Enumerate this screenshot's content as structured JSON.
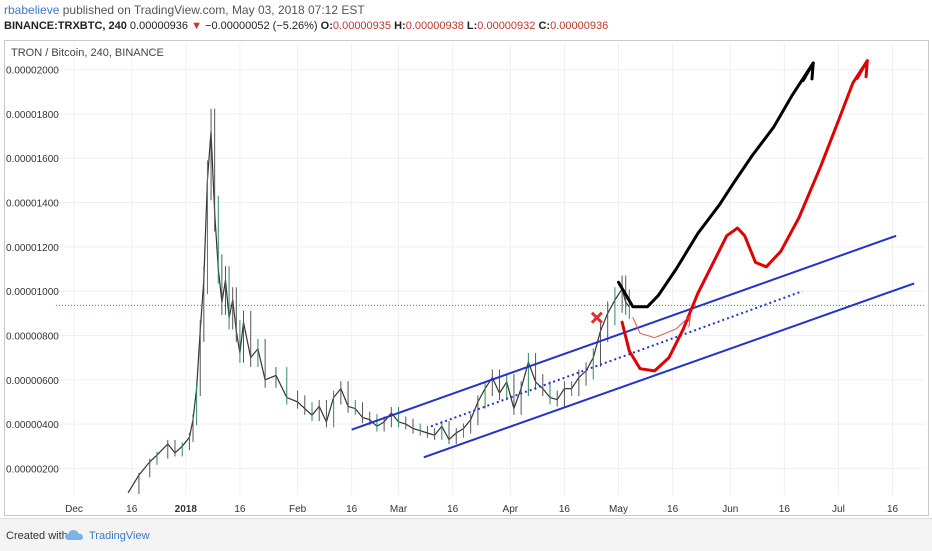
{
  "header": {
    "author": "rbabelieve",
    "published": "published on TradingView.com, May 03, 2018 07:12 EST",
    "symbol": "BINANCE:TRXBTC, 240",
    "last": "0.00000936",
    "change": "−0.00000052 (−5.26%)",
    "open_label": "O:",
    "open": "0.00000935",
    "high_label": "H:",
    "high": "0.00000938",
    "low_label": "L:",
    "low": "0.00000932",
    "close_label": "C:",
    "close": "0.00000936",
    "down_color": "#c0392b"
  },
  "footer": {
    "created_label": "Created with",
    "brand": "TradingView",
    "logo_icon": "tradingview-cloud-icon"
  },
  "chart_data": {
    "type": "line",
    "legend_label": "TRON / Bitcoin, 240, BINANCE",
    "y_ticks": [
      "0.00002000",
      "0.00001800",
      "0.00001600",
      "0.00001400",
      "0.00001200",
      "0.00001000",
      "0.00000800",
      "0.00000600",
      "0.00000400",
      "0.00000200"
    ],
    "y_tick_values": [
      2000,
      1800,
      1600,
      1400,
      1200,
      1000,
      800,
      600,
      400,
      200
    ],
    "ylim": [
      80,
      2120
    ],
    "y_unit_note": "values in 1e-8 BTC",
    "x_ticks": [
      "Dec",
      "16",
      "2018",
      "16",
      "Feb",
      "16",
      "Mar",
      "16",
      "Apr",
      "16",
      "May",
      "16",
      "Jun",
      "16",
      "Jul",
      "16"
    ],
    "x_tick_days": [
      -31,
      -15,
      0,
      15,
      31,
      46,
      59,
      74,
      90,
      105,
      120,
      135,
      151,
      166,
      181,
      196
    ],
    "x_bold_ticks": [
      "2018"
    ],
    "xlim": [
      -36,
      205
    ],
    "price_line": 936,
    "price_line_color": "#2e9e4f",
    "series": [
      {
        "color": "#333333",
        "points": [
          [
            -16,
            90
          ],
          [
            -13,
            170
          ],
          [
            -10,
            230
          ],
          [
            -8,
            260
          ],
          [
            -5,
            310
          ],
          [
            -3,
            270
          ],
          [
            -1,
            300
          ],
          [
            1,
            340
          ],
          [
            2,
            420
          ],
          [
            3,
            560
          ],
          [
            4,
            820
          ],
          [
            5,
            1050
          ],
          [
            6,
            1500
          ],
          [
            7,
            1720
          ],
          [
            8,
            1350
          ],
          [
            9,
            1100
          ],
          [
            10,
            950
          ],
          [
            11,
            1050
          ],
          [
            12,
            880
          ],
          [
            13,
            960
          ],
          [
            14,
            820
          ],
          [
            15,
            720
          ],
          [
            16,
            860
          ],
          [
            18,
            700
          ],
          [
            20,
            740
          ],
          [
            22,
            600
          ],
          [
            25,
            620
          ],
          [
            28,
            520
          ],
          [
            31,
            500
          ],
          [
            33,
            470
          ],
          [
            35,
            440
          ],
          [
            37,
            480
          ],
          [
            39,
            410
          ],
          [
            41,
            520
          ],
          [
            43,
            560
          ],
          [
            45,
            480
          ],
          [
            47,
            470
          ],
          [
            49,
            430
          ],
          [
            51,
            420
          ],
          [
            53,
            390
          ],
          [
            55,
            410
          ],
          [
            57,
            450
          ],
          [
            59,
            410
          ],
          [
            61,
            400
          ],
          [
            63,
            380
          ],
          [
            65,
            370
          ],
          [
            67,
            360
          ],
          [
            69,
            350
          ],
          [
            71,
            390
          ],
          [
            73,
            330
          ],
          [
            75,
            360
          ],
          [
            77,
            380
          ],
          [
            79,
            420
          ],
          [
            81,
            500
          ],
          [
            83,
            560
          ],
          [
            85,
            610
          ],
          [
            87,
            540
          ],
          [
            89,
            590
          ],
          [
            91,
            470
          ],
          [
            93,
            560
          ],
          [
            95,
            680
          ],
          [
            97,
            590
          ],
          [
            99,
            560
          ],
          [
            101,
            520
          ],
          [
            103,
            510
          ],
          [
            105,
            560
          ],
          [
            107,
            560
          ],
          [
            109,
            610
          ],
          [
            111,
            640
          ],
          [
            113,
            700
          ],
          [
            115,
            820
          ],
          [
            117,
            900
          ],
          [
            119,
            960
          ],
          [
            121,
            1010
          ],
          [
            122,
            950
          ],
          [
            123,
            930
          ]
        ]
      }
    ],
    "annotations": [
      {
        "kind": "channel-line",
        "color": "#2233cc",
        "from": [
          46,
          375
        ],
        "to": [
          197,
          1250
        ]
      },
      {
        "kind": "channel-line",
        "color": "#2233cc",
        "from": [
          66,
          250
        ],
        "to": [
          202,
          1035
        ]
      },
      {
        "kind": "channel-dotted",
        "color": "#2233cc",
        "from": [
          68,
          390
        ],
        "to": [
          171,
          1000
        ]
      },
      {
        "kind": "cross-marker",
        "color": "#e03030",
        "at": [
          114,
          880
        ]
      },
      {
        "kind": "arrow-black",
        "color": "#000000",
        "points": [
          [
            120,
            1040
          ],
          [
            124,
            930
          ],
          [
            128,
            930
          ],
          [
            131,
            980
          ],
          [
            136,
            1100
          ],
          [
            142,
            1260
          ],
          [
            148,
            1390
          ],
          [
            152,
            1490
          ],
          [
            157,
            1610
          ],
          [
            163,
            1740
          ],
          [
            168,
            1880
          ],
          [
            174,
            2030
          ]
        ]
      },
      {
        "kind": "arrow-red",
        "color": "#e00000",
        "points": [
          [
            121,
            860
          ],
          [
            123,
            730
          ],
          [
            126,
            650
          ],
          [
            130,
            640
          ],
          [
            134,
            700
          ],
          [
            138,
            830
          ],
          [
            142,
            990
          ],
          [
            146,
            1120
          ],
          [
            150,
            1250
          ],
          [
            153,
            1285
          ],
          [
            155,
            1250
          ],
          [
            158,
            1130
          ],
          [
            161,
            1110
          ],
          [
            165,
            1180
          ],
          [
            170,
            1330
          ],
          [
            176,
            1560
          ],
          [
            181,
            1770
          ],
          [
            185,
            1940
          ],
          [
            189,
            2040
          ]
        ]
      },
      {
        "kind": "arrow-thin-red",
        "color": "#e05050",
        "points": [
          [
            124,
            880
          ],
          [
            126,
            810
          ],
          [
            130,
            790
          ],
          [
            136,
            830
          ],
          [
            140,
            890
          ]
        ]
      }
    ]
  }
}
